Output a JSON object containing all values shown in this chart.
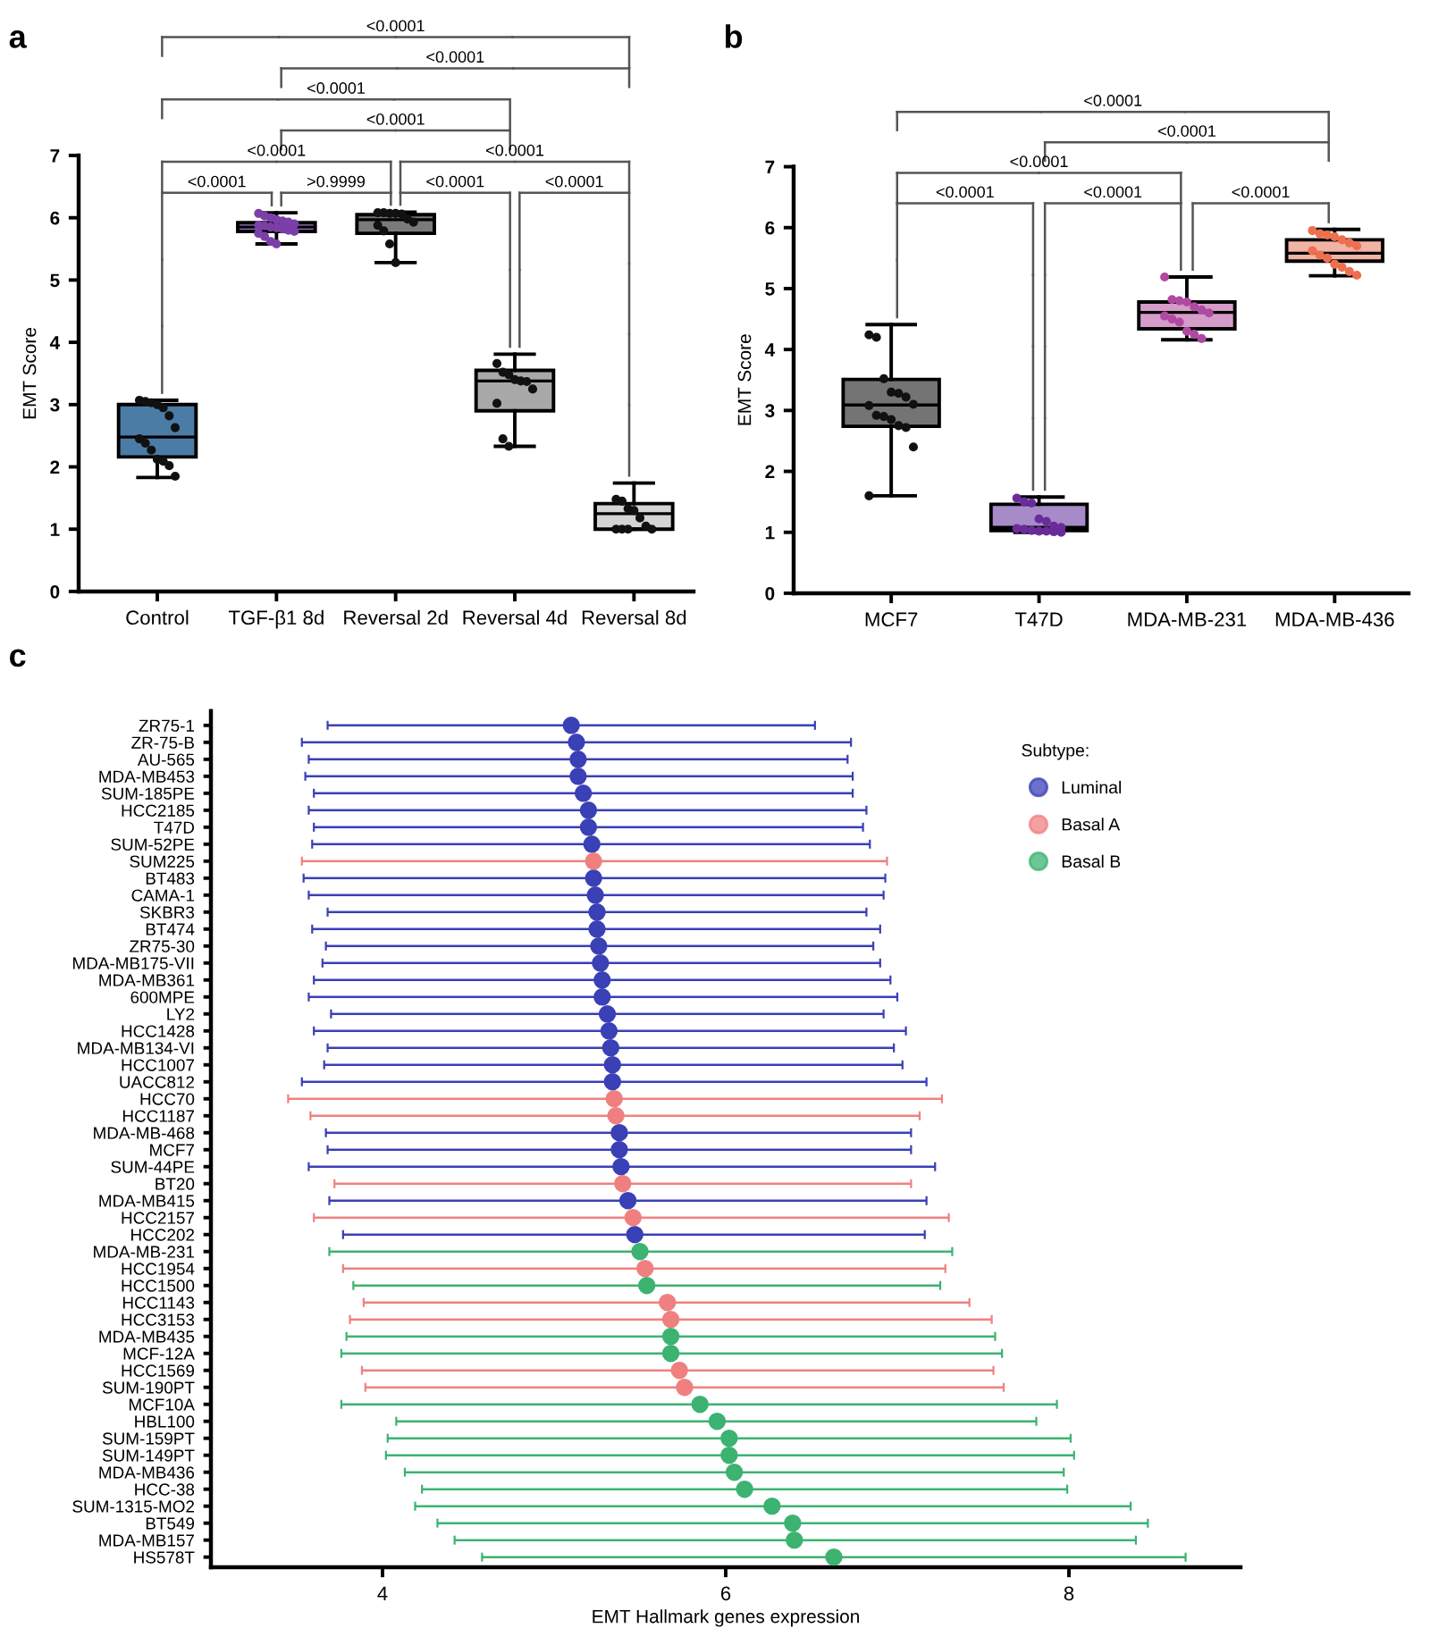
{
  "chart_data": [
    {
      "type": "box",
      "title": "a",
      "ylabel": "EMT Score",
      "categories": [
        "Control",
        "TGF-β1 8d",
        "Reversal 2d",
        "Reversal 4d",
        "Reversal 8d"
      ],
      "ylim": [
        0,
        7
      ],
      "yticks": [
        0,
        1,
        2,
        3,
        4,
        5,
        6,
        7
      ],
      "grid": false,
      "series": [
        {
          "type": "box",
          "colors": [
            "#4a7ca6",
            "#9a7cc2",
            "#7a7a7a",
            "#a8a8a8",
            "#d4d4d4"
          ],
          "boxes": [
            {
              "low": 1.83,
              "q1": 2.16,
              "median": 2.48,
              "q3": 3.0,
              "high": 3.07
            },
            {
              "low": 5.58,
              "q1": 5.78,
              "median": 5.85,
              "q3": 5.92,
              "high": 6.08
            },
            {
              "low": 5.28,
              "q1": 5.75,
              "median": 5.97,
              "q3": 6.05,
              "high": 6.09
            },
            {
              "low": 2.33,
              "q1": 2.9,
              "median": 3.38,
              "q3": 3.55,
              "high": 3.81
            },
            {
              "low": 1.0,
              "q1": 1.0,
              "median": 1.25,
              "q3": 1.41,
              "high": 1.74
            }
          ]
        },
        {
          "type": "scatter",
          "color": "#111111",
          "x": [
            "Control",
            "Control",
            "Control",
            "Control",
            "Control",
            "Control",
            "Control",
            "Control",
            "Control",
            "Control",
            "Control",
            "Control",
            "Control",
            "Control"
          ],
          "values": [
            3.07,
            3.05,
            3.03,
            3.0,
            2.95,
            2.82,
            2.63,
            2.45,
            2.38,
            2.27,
            2.12,
            2.09,
            2.02,
            1.85
          ]
        },
        {
          "type": "scatter",
          "color": "#7b3fa8",
          "x": [
            "TGF-β1 8d",
            "TGF-β1 8d",
            "TGF-β1 8d",
            "TGF-β1 8d",
            "TGF-β1 8d",
            "TGF-β1 8d",
            "TGF-β1 8d",
            "TGF-β1 8d",
            "TGF-β1 8d",
            "TGF-β1 8d",
            "TGF-β1 8d",
            "TGF-β1 8d",
            "TGF-β1 8d",
            "TGF-β1 8d",
            "TGF-β1 8d",
            "TGF-β1 8d",
            "TGF-β1 8d",
            "TGF-β1 8d"
          ],
          "values": [
            6.07,
            6.03,
            6.0,
            5.97,
            5.95,
            5.93,
            5.9,
            5.88,
            5.87,
            5.85,
            5.84,
            5.82,
            5.8,
            5.78,
            5.75,
            5.7,
            5.62,
            5.58
          ]
        },
        {
          "type": "scatter",
          "color": "#111111",
          "x": [
            "Reversal 2d",
            "Reversal 2d",
            "Reversal 2d",
            "Reversal 2d",
            "Reversal 2d",
            "Reversal 2d",
            "Reversal 2d",
            "Reversal 2d",
            "Reversal 2d",
            "Reversal 2d",
            "Reversal 2d"
          ],
          "values": [
            6.08,
            6.08,
            6.07,
            6.07,
            6.06,
            5.98,
            5.93,
            5.88,
            5.79,
            5.58,
            5.28
          ]
        },
        {
          "type": "scatter",
          "color": "#111111",
          "x": [
            "Reversal 4d",
            "Reversal 4d",
            "Reversal 4d",
            "Reversal 4d",
            "Reversal 4d",
            "Reversal 4d",
            "Reversal 4d",
            "Reversal 4d",
            "Reversal 4d",
            "Reversal 4d"
          ],
          "values": [
            3.66,
            3.52,
            3.48,
            3.4,
            3.38,
            3.37,
            3.25,
            3.02,
            2.45,
            2.33
          ]
        },
        {
          "type": "scatter",
          "color": "#111111",
          "x": [
            "Reversal 8d",
            "Reversal 8d",
            "Reversal 8d",
            "Reversal 8d",
            "Reversal 8d",
            "Reversal 8d",
            "Reversal 8d",
            "Reversal 8d",
            "Reversal 8d",
            "Reversal 8d"
          ],
          "values": [
            1.48,
            1.45,
            1.33,
            1.3,
            1.18,
            1.05,
            1.0,
            1.0,
            1.0,
            1.0
          ]
        }
      ],
      "annotations": [
        "<0.0001",
        "<0.0001",
        "<0.0001",
        "<0.0001",
        "<0.0001",
        "<0.0001",
        "<0.0001",
        ">0.9999",
        "<0.0001",
        "<0.0001"
      ]
    },
    {
      "type": "box",
      "title": "b",
      "ylabel": "EMT Score",
      "categories": [
        "MCF7",
        "T47D",
        "MDA-MB-231",
        "MDA-MB-436"
      ],
      "ylim": [
        0,
        7
      ],
      "yticks": [
        0,
        1,
        2,
        3,
        4,
        5,
        6,
        7
      ],
      "grid": false,
      "series": [
        {
          "type": "box",
          "colors": [
            "#747474",
            "#a68bc8",
            "#d69cc9",
            "#f2b3a3"
          ],
          "boxes": [
            {
              "low": 1.6,
              "q1": 2.74,
              "median": 3.09,
              "q3": 3.51,
              "high": 4.41
            },
            {
              "low": 1.0,
              "q1": 1.03,
              "median": 1.08,
              "q3": 1.46,
              "high": 1.58
            },
            {
              "low": 4.16,
              "q1": 4.34,
              "median": 4.61,
              "q3": 4.78,
              "high": 5.19
            },
            {
              "low": 5.21,
              "q1": 5.45,
              "median": 5.58,
              "q3": 5.8,
              "high": 5.97
            }
          ]
        },
        {
          "type": "scatter",
          "color": "#111111",
          "x": [
            "MCF7",
            "MCF7",
            "MCF7",
            "MCF7",
            "MCF7",
            "MCF7",
            "MCF7",
            "MCF7",
            "MCF7",
            "MCF7",
            "MCF7",
            "MCF7",
            "MCF7",
            "MCF7",
            "MCF7"
          ],
          "values": [
            4.24,
            4.2,
            3.52,
            3.3,
            3.28,
            3.22,
            3.1,
            3.08,
            2.92,
            2.9,
            2.85,
            2.75,
            2.72,
            2.4,
            1.6
          ]
        },
        {
          "type": "scatter",
          "color": "#6a2c9a",
          "x": [
            "T47D",
            "T47D",
            "T47D",
            "T47D",
            "T47D",
            "T47D",
            "T47D",
            "T47D",
            "T47D",
            "T47D",
            "T47D",
            "T47D",
            "T47D",
            "T47D"
          ],
          "values": [
            1.56,
            1.5,
            1.48,
            1.22,
            1.18,
            1.1,
            1.08,
            1.06,
            1.05,
            1.03,
            1.02,
            1.02,
            1.01,
            1.0
          ]
        },
        {
          "type": "scatter",
          "color": "#b04aa0",
          "x": [
            "MDA-MB-231",
            "MDA-MB-231",
            "MDA-MB-231",
            "MDA-MB-231",
            "MDA-MB-231",
            "MDA-MB-231",
            "MDA-MB-231",
            "MDA-MB-231",
            "MDA-MB-231",
            "MDA-MB-231",
            "MDA-MB-231",
            "MDA-MB-231",
            "MDA-MB-231"
          ],
          "values": [
            5.19,
            4.82,
            4.8,
            4.78,
            4.7,
            4.65,
            4.6,
            4.55,
            4.5,
            4.45,
            4.3,
            4.25,
            4.18
          ]
        },
        {
          "type": "scatter",
          "color": "#ee6f50",
          "x": [
            "MDA-MB-436",
            "MDA-MB-436",
            "MDA-MB-436",
            "MDA-MB-436",
            "MDA-MB-436",
            "MDA-MB-436",
            "MDA-MB-436",
            "MDA-MB-436",
            "MDA-MB-436",
            "MDA-MB-436",
            "MDA-MB-436",
            "MDA-MB-436",
            "MDA-MB-436",
            "MDA-MB-436"
          ],
          "values": [
            5.95,
            5.9,
            5.88,
            5.85,
            5.8,
            5.75,
            5.7,
            5.62,
            5.55,
            5.5,
            5.4,
            5.35,
            5.28,
            5.22
          ]
        }
      ],
      "annotations": [
        "<0.0001",
        "<0.0001",
        "<0.0001",
        "<0.0001",
        "<0.0001",
        "<0.0001"
      ]
    },
    {
      "type": "scatter",
      "title": "c",
      "orientation": "horizontal",
      "xlabel": "EMT Hallmark genes expression",
      "legend_title": "Subtype:",
      "legend": "top right",
      "marker": "circle",
      "grid": false,
      "xlim": [
        3,
        9
      ],
      "xticks": [
        4,
        6,
        8
      ],
      "categories": [
        "ZR75-1",
        "ZR-75-B",
        "AU-565",
        "MDA-MB453",
        "SUM-185PE",
        "HCC2185",
        "T47D",
        "SUM-52PE",
        "SUM225",
        "BT483",
        "CAMA-1",
        "SKBR3",
        "BT474",
        "ZR75-30",
        "MDA-MB175-VII",
        "MDA-MB361",
        "600MPE",
        "LY2",
        "HCC1428",
        "MDA-MB134-VI",
        "HCC1007",
        "UACC812",
        "HCC70",
        "HCC1187",
        "MDA-MB-468",
        "MCF7",
        "SUM-44PE",
        "BT20",
        "MDA-MB415",
        "HCC2157",
        "HCC202",
        "MDA-MB-231",
        "HCC1954",
        "HCC1500",
        "HCC1143",
        "HCC3153",
        "MDA-MB435",
        "MCF-12A",
        "HCC1569",
        "SUM-190PT",
        "MCF10A",
        "HBL100",
        "SUM-159PT",
        "SUM-149PT",
        "MDA-MB436",
        "HCC-38",
        "SUM-1315-MO2",
        "BT549",
        "MDA-MB157",
        "HS578T"
      ],
      "series": [
        {
          "name": "Luminal",
          "color": "#3a40b5",
          "values": [
            5.1,
            5.13,
            5.14,
            5.14,
            5.17,
            5.2,
            5.2,
            5.22,
            null,
            5.23,
            5.24,
            5.25,
            5.25,
            5.26,
            5.27,
            5.28,
            5.28,
            5.31,
            5.32,
            5.33,
            5.34,
            5.34,
            null,
            null,
            5.38,
            5.38,
            5.39,
            null,
            5.43,
            null,
            5.47,
            null,
            null,
            null,
            null,
            null,
            null,
            null,
            null,
            null,
            null,
            null,
            null,
            null,
            null,
            null,
            null,
            null,
            null,
            null
          ],
          "errors": [
            [
              3.68,
              6.52
            ],
            [
              3.53,
              6.73
            ],
            [
              3.57,
              6.71
            ],
            [
              3.55,
              6.74
            ],
            [
              3.6,
              6.74
            ],
            [
              3.57,
              6.82
            ],
            [
              3.6,
              6.8
            ],
            [
              3.59,
              6.84
            ],
            null,
            [
              3.54,
              6.93
            ],
            [
              3.57,
              6.92
            ],
            [
              3.68,
              6.82
            ],
            [
              3.59,
              6.9
            ],
            [
              3.67,
              6.86
            ],
            [
              3.65,
              6.9
            ],
            [
              3.6,
              6.96
            ],
            [
              3.57,
              7.0
            ],
            [
              3.7,
              6.92
            ],
            [
              3.6,
              7.05
            ],
            [
              3.68,
              6.98
            ],
            [
              3.66,
              7.03
            ],
            [
              3.53,
              7.17
            ],
            null,
            null,
            [
              3.67,
              7.08
            ],
            [
              3.68,
              7.08
            ],
            [
              3.57,
              7.22
            ],
            null,
            [
              3.69,
              7.17
            ],
            null,
            [
              3.77,
              7.16
            ],
            null,
            null,
            null,
            null,
            null,
            null,
            null,
            null,
            null,
            null,
            null,
            null,
            null,
            null,
            null,
            null,
            null,
            null,
            null
          ]
        },
        {
          "name": "Basal A",
          "color": "#f08080",
          "values": [
            null,
            null,
            null,
            null,
            null,
            null,
            null,
            null,
            5.23,
            null,
            null,
            null,
            null,
            null,
            null,
            null,
            null,
            null,
            null,
            null,
            null,
            null,
            5.35,
            5.36,
            null,
            null,
            null,
            5.4,
            null,
            5.46,
            null,
            null,
            5.53,
            null,
            5.66,
            5.68,
            null,
            null,
            5.73,
            5.76,
            null,
            null,
            null,
            null,
            null,
            null,
            null,
            null,
            null,
            null
          ],
          "errors": [
            null,
            null,
            null,
            null,
            null,
            null,
            null,
            null,
            [
              3.53,
              6.94
            ],
            null,
            null,
            null,
            null,
            null,
            null,
            null,
            null,
            null,
            null,
            null,
            null,
            null,
            [
              3.45,
              7.26
            ],
            [
              3.58,
              7.13
            ],
            null,
            null,
            null,
            [
              3.72,
              7.08
            ],
            null,
            [
              3.6,
              7.3
            ],
            null,
            null,
            [
              3.77,
              7.28
            ],
            null,
            [
              3.89,
              7.42
            ],
            [
              3.81,
              7.55
            ],
            null,
            null,
            [
              3.88,
              7.56
            ],
            [
              3.9,
              7.62
            ],
            null,
            null,
            null,
            null,
            null,
            null,
            null,
            null,
            null,
            null
          ]
        },
        {
          "name": "Basal B",
          "color": "#3cb371",
          "values": [
            null,
            null,
            null,
            null,
            null,
            null,
            null,
            null,
            null,
            null,
            null,
            null,
            null,
            null,
            null,
            null,
            null,
            null,
            null,
            null,
            null,
            null,
            null,
            null,
            null,
            null,
            null,
            null,
            null,
            null,
            null,
            5.5,
            null,
            5.54,
            null,
            null,
            5.68,
            5.68,
            null,
            null,
            5.85,
            5.95,
            6.02,
            6.02,
            6.05,
            6.11,
            6.27,
            6.39,
            6.4,
            6.63
          ],
          "errors": [
            null,
            null,
            null,
            null,
            null,
            null,
            null,
            null,
            null,
            null,
            null,
            null,
            null,
            null,
            null,
            null,
            null,
            null,
            null,
            null,
            null,
            null,
            null,
            null,
            null,
            null,
            null,
            null,
            null,
            null,
            null,
            [
              3.69,
              7.32
            ],
            null,
            [
              3.83,
              7.25
            ],
            null,
            null,
            [
              3.79,
              7.57
            ],
            [
              3.76,
              7.61
            ],
            null,
            null,
            [
              3.76,
              7.93
            ],
            [
              4.08,
              7.81
            ],
            [
              4.03,
              8.01
            ],
            [
              4.02,
              8.03
            ],
            [
              4.13,
              7.97
            ],
            [
              4.23,
              7.99
            ],
            [
              4.19,
              8.36
            ],
            [
              4.32,
              8.46
            ],
            [
              4.42,
              8.39
            ],
            [
              4.58,
              8.68
            ]
          ]
        }
      ]
    }
  ]
}
